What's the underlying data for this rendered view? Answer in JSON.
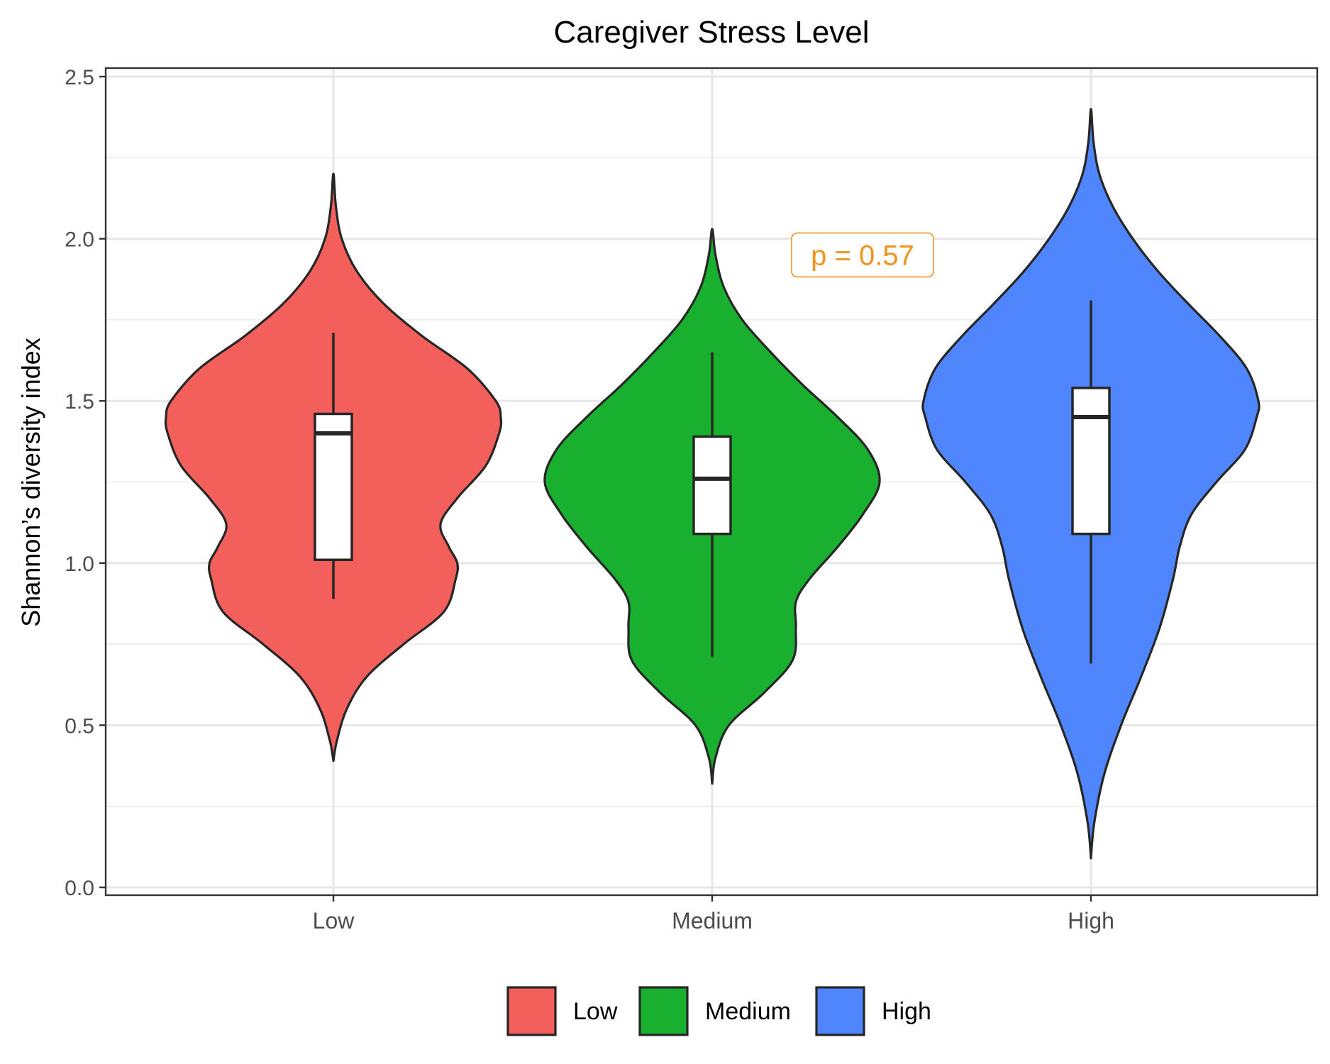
{
  "chart_data": {
    "type": "violin",
    "title": "Caregiver Stress Level",
    "xlabel": "",
    "ylabel": "Shannon’s diversity index",
    "ylim": [
      0,
      2.5
    ],
    "y_ticks": [
      "0.0",
      "0.5",
      "1.0",
      "1.5",
      "2.0",
      "2.5"
    ],
    "grid": true,
    "legend_position": "bottom",
    "categories": [
      "Low",
      "Medium",
      "High"
    ],
    "colors": {
      "Low": "#F35F5B",
      "Medium": "#1AB02F",
      "High": "#4F86FE",
      "annotation": "#F1931C"
    },
    "annotation": {
      "text": "p = 0.57",
      "x_between": [
        "Medium",
        "High"
      ],
      "y": 1.95
    },
    "series": [
      {
        "name": "Low",
        "box": {
          "lower_whisker": 0.89,
          "q1": 1.01,
          "median": 1.4,
          "q3": 1.46,
          "upper_whisker": 1.71
        },
        "density": [
          [
            0.39,
            0.0
          ],
          [
            0.45,
            0.02
          ],
          [
            0.55,
            0.08
          ],
          [
            0.65,
            0.2
          ],
          [
            0.75,
            0.42
          ],
          [
            0.85,
            0.66
          ],
          [
            0.95,
            0.73
          ],
          [
            1.0,
            0.74
          ],
          [
            1.05,
            0.69
          ],
          [
            1.12,
            0.64
          ],
          [
            1.2,
            0.74
          ],
          [
            1.3,
            0.91
          ],
          [
            1.4,
            0.99
          ],
          [
            1.45,
            1.0
          ],
          [
            1.5,
            0.97
          ],
          [
            1.6,
            0.8
          ],
          [
            1.7,
            0.53
          ],
          [
            1.8,
            0.3
          ],
          [
            1.9,
            0.14
          ],
          [
            2.0,
            0.05
          ],
          [
            2.1,
            0.015
          ],
          [
            2.2,
            0.0
          ]
        ]
      },
      {
        "name": "Medium",
        "box": {
          "lower_whisker": 0.71,
          "q1": 1.09,
          "median": 1.26,
          "q3": 1.39,
          "upper_whisker": 1.65
        },
        "density": [
          [
            0.32,
            0.0
          ],
          [
            0.4,
            0.02
          ],
          [
            0.5,
            0.1
          ],
          [
            0.6,
            0.31
          ],
          [
            0.7,
            0.48
          ],
          [
            0.8,
            0.5
          ],
          [
            0.88,
            0.5
          ],
          [
            0.95,
            0.58
          ],
          [
            1.05,
            0.75
          ],
          [
            1.15,
            0.9
          ],
          [
            1.25,
            1.0
          ],
          [
            1.35,
            0.93
          ],
          [
            1.45,
            0.75
          ],
          [
            1.55,
            0.54
          ],
          [
            1.65,
            0.35
          ],
          [
            1.75,
            0.18
          ],
          [
            1.85,
            0.07
          ],
          [
            1.95,
            0.02
          ],
          [
            2.03,
            0.0
          ]
        ]
      },
      {
        "name": "High",
        "box": {
          "lower_whisker": 0.69,
          "q1": 1.09,
          "median": 1.45,
          "q3": 1.54,
          "upper_whisker": 1.81
        },
        "density": [
          [
            0.09,
            0.0
          ],
          [
            0.2,
            0.02
          ],
          [
            0.35,
            0.08
          ],
          [
            0.5,
            0.18
          ],
          [
            0.65,
            0.3
          ],
          [
            0.8,
            0.41
          ],
          [
            0.95,
            0.49
          ],
          [
            1.05,
            0.53
          ],
          [
            1.15,
            0.6
          ],
          [
            1.25,
            0.75
          ],
          [
            1.35,
            0.92
          ],
          [
            1.45,
            0.99
          ],
          [
            1.5,
            1.0
          ],
          [
            1.6,
            0.93
          ],
          [
            1.7,
            0.77
          ],
          [
            1.8,
            0.58
          ],
          [
            1.9,
            0.4
          ],
          [
            2.0,
            0.25
          ],
          [
            2.1,
            0.13
          ],
          [
            2.2,
            0.05
          ],
          [
            2.3,
            0.015
          ],
          [
            2.4,
            0.0
          ]
        ]
      }
    ]
  }
}
